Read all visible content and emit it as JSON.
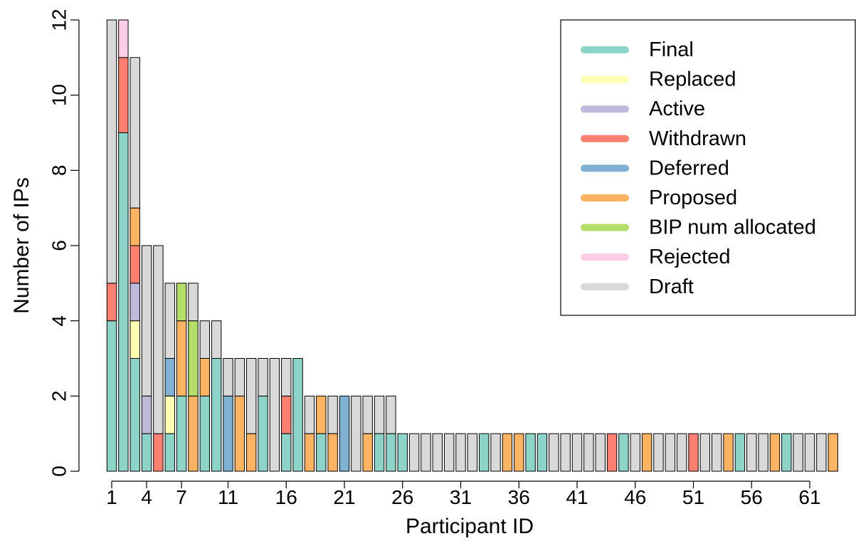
{
  "chart_data": {
    "type": "bar",
    "stacked": true,
    "title": "",
    "xlabel": "Participant ID",
    "ylabel": "Number of IPs",
    "ylim": [
      0,
      12
    ],
    "yticks": [
      0,
      2,
      4,
      6,
      8,
      10,
      12
    ],
    "xtick_labels": [
      1,
      4,
      7,
      11,
      16,
      21,
      26,
      31,
      36,
      41,
      46,
      51,
      56,
      61
    ],
    "legend_position": "top-right",
    "series": [
      {
        "name": "Final",
        "color": "#8dd3c7"
      },
      {
        "name": "Replaced",
        "color": "#ffffb3"
      },
      {
        "name": "Active",
        "color": "#bebada"
      },
      {
        "name": "Withdrawn",
        "color": "#fb8072"
      },
      {
        "name": "Deferred",
        "color": "#80b1d3"
      },
      {
        "name": "Proposed",
        "color": "#fdb462"
      },
      {
        "name": "BIP num allocated",
        "color": "#b3de69"
      },
      {
        "name": "Rejected",
        "color": "#fccde5"
      },
      {
        "name": "Draft",
        "color": "#d9d9d9"
      }
    ],
    "bars": [
      {
        "x": 1,
        "stack": [
          [
            "Final",
            4
          ],
          [
            "Withdrawn",
            1
          ],
          [
            "Draft",
            7
          ]
        ]
      },
      {
        "x": 2,
        "stack": [
          [
            "Final",
            9
          ],
          [
            "Withdrawn",
            2
          ],
          [
            "Rejected",
            1
          ]
        ]
      },
      {
        "x": 3,
        "stack": [
          [
            "Final",
            3
          ],
          [
            "Replaced",
            1
          ],
          [
            "Active",
            1
          ],
          [
            "Withdrawn",
            1
          ],
          [
            "Proposed",
            1
          ],
          [
            "Draft",
            4
          ]
        ]
      },
      {
        "x": 4,
        "stack": [
          [
            "Final",
            1
          ],
          [
            "Active",
            1
          ],
          [
            "Draft",
            4
          ]
        ]
      },
      {
        "x": 5,
        "stack": [
          [
            "Withdrawn",
            1
          ],
          [
            "Draft",
            5
          ]
        ]
      },
      {
        "x": 6,
        "stack": [
          [
            "Final",
            1
          ],
          [
            "Replaced",
            1
          ],
          [
            "Deferred",
            1
          ],
          [
            "Draft",
            2
          ]
        ]
      },
      {
        "x": 7,
        "stack": [
          [
            "Final",
            2
          ],
          [
            "Proposed",
            2
          ],
          [
            "BIP num allocated",
            1
          ]
        ]
      },
      {
        "x": 8,
        "stack": [
          [
            "Proposed",
            2
          ],
          [
            "BIP num allocated",
            2
          ],
          [
            "Draft",
            1
          ]
        ]
      },
      {
        "x": 9,
        "stack": [
          [
            "Final",
            2
          ],
          [
            "Proposed",
            1
          ],
          [
            "Draft",
            1
          ]
        ]
      },
      {
        "x": 10,
        "stack": [
          [
            "Final",
            3
          ],
          [
            "Draft",
            1
          ]
        ]
      },
      {
        "x": 11,
        "stack": [
          [
            "Deferred",
            2
          ],
          [
            "Draft",
            1
          ]
        ]
      },
      {
        "x": 12,
        "stack": [
          [
            "Proposed",
            2
          ],
          [
            "Draft",
            1
          ]
        ]
      },
      {
        "x": 13,
        "stack": [
          [
            "Proposed",
            1
          ],
          [
            "Draft",
            2
          ]
        ]
      },
      {
        "x": 14,
        "stack": [
          [
            "Final",
            2
          ],
          [
            "Draft",
            1
          ]
        ]
      },
      {
        "x": 15,
        "stack": [
          [
            "Draft",
            3
          ]
        ]
      },
      {
        "x": 16,
        "stack": [
          [
            "Final",
            1
          ],
          [
            "Withdrawn",
            1
          ],
          [
            "Draft",
            1
          ]
        ]
      },
      {
        "x": 17,
        "stack": [
          [
            "Final",
            3
          ]
        ]
      },
      {
        "x": 18,
        "stack": [
          [
            "Proposed",
            1
          ],
          [
            "Draft",
            1
          ]
        ]
      },
      {
        "x": 19,
        "stack": [
          [
            "Final",
            1
          ],
          [
            "Proposed",
            1
          ]
        ]
      },
      {
        "x": 20,
        "stack": [
          [
            "Proposed",
            1
          ],
          [
            "Draft",
            1
          ]
        ]
      },
      {
        "x": 21,
        "stack": [
          [
            "Deferred",
            2
          ]
        ]
      },
      {
        "x": 22,
        "stack": [
          [
            "Draft",
            2
          ]
        ]
      },
      {
        "x": 23,
        "stack": [
          [
            "Proposed",
            1
          ],
          [
            "Draft",
            1
          ]
        ]
      },
      {
        "x": 24,
        "stack": [
          [
            "Final",
            1
          ],
          [
            "Draft",
            1
          ]
        ]
      },
      {
        "x": 25,
        "stack": [
          [
            "Final",
            1
          ],
          [
            "Draft",
            1
          ]
        ]
      },
      {
        "x": 26,
        "stack": [
          [
            "Final",
            1
          ]
        ]
      },
      {
        "x": 27,
        "stack": [
          [
            "Draft",
            1
          ]
        ]
      },
      {
        "x": 28,
        "stack": [
          [
            "Draft",
            1
          ]
        ]
      },
      {
        "x": 29,
        "stack": [
          [
            "Draft",
            1
          ]
        ]
      },
      {
        "x": 30,
        "stack": [
          [
            "Draft",
            1
          ]
        ]
      },
      {
        "x": 31,
        "stack": [
          [
            "Draft",
            1
          ]
        ]
      },
      {
        "x": 32,
        "stack": [
          [
            "Draft",
            1
          ]
        ]
      },
      {
        "x": 33,
        "stack": [
          [
            "Final",
            1
          ]
        ]
      },
      {
        "x": 34,
        "stack": [
          [
            "Draft",
            1
          ]
        ]
      },
      {
        "x": 35,
        "stack": [
          [
            "Proposed",
            1
          ]
        ]
      },
      {
        "x": 36,
        "stack": [
          [
            "Proposed",
            1
          ]
        ]
      },
      {
        "x": 37,
        "stack": [
          [
            "Final",
            1
          ]
        ]
      },
      {
        "x": 38,
        "stack": [
          [
            "Final",
            1
          ]
        ]
      },
      {
        "x": 39,
        "stack": [
          [
            "Draft",
            1
          ]
        ]
      },
      {
        "x": 40,
        "stack": [
          [
            "Draft",
            1
          ]
        ]
      },
      {
        "x": 41,
        "stack": [
          [
            "Draft",
            1
          ]
        ]
      },
      {
        "x": 42,
        "stack": [
          [
            "Draft",
            1
          ]
        ]
      },
      {
        "x": 43,
        "stack": [
          [
            "Draft",
            1
          ]
        ]
      },
      {
        "x": 44,
        "stack": [
          [
            "Withdrawn",
            1
          ]
        ]
      },
      {
        "x": 45,
        "stack": [
          [
            "Final",
            1
          ]
        ]
      },
      {
        "x": 46,
        "stack": [
          [
            "Draft",
            1
          ]
        ]
      },
      {
        "x": 47,
        "stack": [
          [
            "Proposed",
            1
          ]
        ]
      },
      {
        "x": 48,
        "stack": [
          [
            "Draft",
            1
          ]
        ]
      },
      {
        "x": 49,
        "stack": [
          [
            "Draft",
            1
          ]
        ]
      },
      {
        "x": 50,
        "stack": [
          [
            "Draft",
            1
          ]
        ]
      },
      {
        "x": 51,
        "stack": [
          [
            "Withdrawn",
            1
          ]
        ]
      },
      {
        "x": 52,
        "stack": [
          [
            "Draft",
            1
          ]
        ]
      },
      {
        "x": 53,
        "stack": [
          [
            "Draft",
            1
          ]
        ]
      },
      {
        "x": 54,
        "stack": [
          [
            "Proposed",
            1
          ]
        ]
      },
      {
        "x": 55,
        "stack": [
          [
            "Final",
            1
          ]
        ]
      },
      {
        "x": 56,
        "stack": [
          [
            "Draft",
            1
          ]
        ]
      },
      {
        "x": 57,
        "stack": [
          [
            "Draft",
            1
          ]
        ]
      },
      {
        "x": 58,
        "stack": [
          [
            "Proposed",
            1
          ]
        ]
      },
      {
        "x": 59,
        "stack": [
          [
            "Final",
            1
          ]
        ]
      },
      {
        "x": 60,
        "stack": [
          [
            "Draft",
            1
          ]
        ]
      },
      {
        "x": 61,
        "stack": [
          [
            "Draft",
            1
          ]
        ]
      },
      {
        "x": 62,
        "stack": [
          [
            "Draft",
            1
          ]
        ]
      },
      {
        "x": 63,
        "stack": [
          [
            "Proposed",
            1
          ]
        ]
      }
    ]
  }
}
